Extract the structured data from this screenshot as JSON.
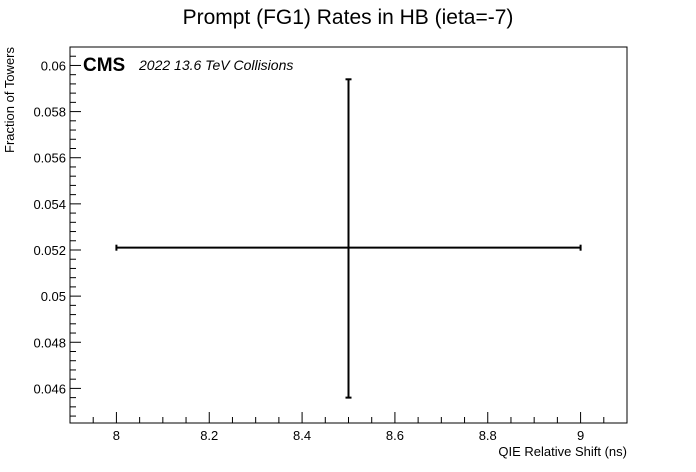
{
  "chart_data": {
    "type": "scatter",
    "title": "Prompt (FG1) Rates in HB (ieta=-7)",
    "xlabel": "QIE Relative Shift (ns)",
    "ylabel": "Fraction of Towers",
    "xlim": [
      7.9,
      9.1
    ],
    "ylim": [
      0.0445,
      0.0608
    ],
    "x_ticks": [
      "8",
      "8.2",
      "8.4",
      "8.6",
      "8.8",
      "9"
    ],
    "y_ticks": [
      "0.046",
      "0.048",
      "0.05",
      "0.052",
      "0.054",
      "0.056",
      "0.058",
      "0.06"
    ],
    "points": [
      {
        "x": 8.5,
        "y": 0.0521,
        "x_err_low": 0.5,
        "x_err_high": 0.5,
        "y_err_low": 0.0065,
        "y_err_high": 0.0073
      }
    ],
    "annotation_bold": "CMS",
    "annotation_italic": "2022 13.6 TeV Collisions",
    "grid": false,
    "legend": "none",
    "colors": {
      "marker": "#000000",
      "axes": "#000000"
    }
  }
}
